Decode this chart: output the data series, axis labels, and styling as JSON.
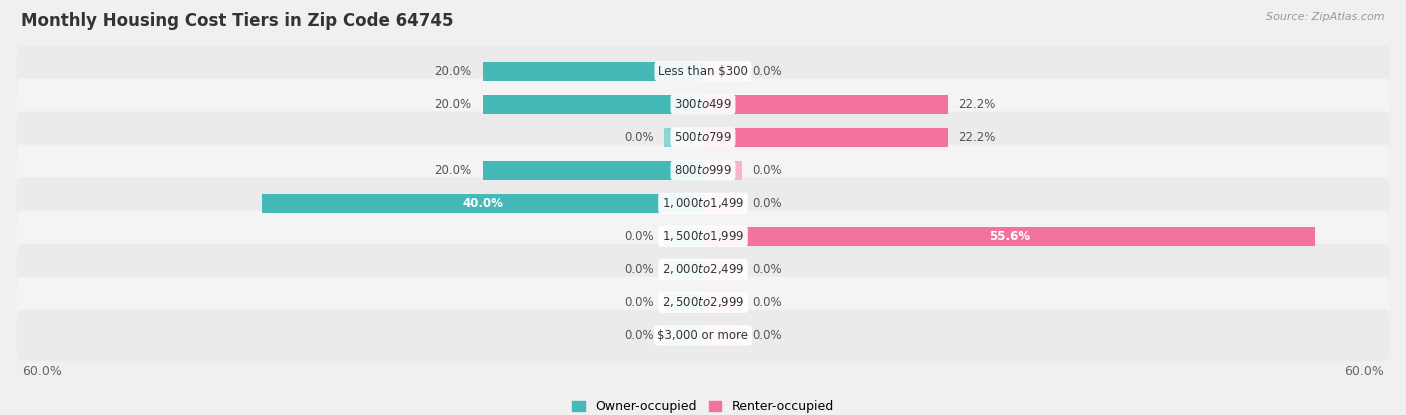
{
  "title": "Monthly Housing Cost Tiers in Zip Code 64745",
  "source": "Source: ZipAtlas.com",
  "categories": [
    "Less than $300",
    "$300 to $499",
    "$500 to $799",
    "$800 to $999",
    "$1,000 to $1,499",
    "$1,500 to $1,999",
    "$2,000 to $2,499",
    "$2,500 to $2,999",
    "$3,000 or more"
  ],
  "owner_values": [
    20.0,
    20.0,
    0.0,
    20.0,
    40.0,
    0.0,
    0.0,
    0.0,
    0.0
  ],
  "renter_values": [
    0.0,
    22.2,
    22.2,
    0.0,
    0.0,
    55.6,
    0.0,
    0.0,
    0.0
  ],
  "owner_color": "#45b8b8",
  "owner_color_light": "#8dd4d4",
  "renter_color": "#f472a0",
  "renter_color_light": "#f8b4cc",
  "axis_limit": 60.0,
  "stub_size": 3.5,
  "bar_height": 0.58,
  "row_colors": [
    "#ebebeb",
    "#f4f4f4"
  ],
  "bg_color": "#f0f0f0",
  "title_fontsize": 12,
  "label_fontsize": 8.5,
  "cat_fontsize": 8.5,
  "legend_owner_color": "#45b8b8",
  "legend_renter_color": "#f472a0"
}
